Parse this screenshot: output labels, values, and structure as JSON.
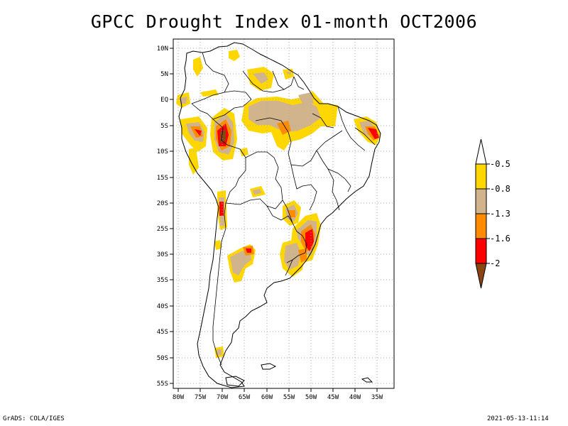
{
  "title": "GPCC Drought Index 01-month OCT2006",
  "footer": {
    "left": "GrADS: COLA/IGES",
    "right": "2021-05-13-11:14"
  },
  "map": {
    "region": "South America",
    "lon_range": [
      -81,
      -31
    ],
    "lat_range": [
      -56,
      12
    ],
    "lat_labels": [
      "10N",
      "5N",
      "EQ",
      "5S",
      "10S",
      "15S",
      "20S",
      "25S",
      "30S",
      "35S",
      "40S",
      "45S",
      "50S",
      "55S"
    ],
    "lon_labels": [
      "80W",
      "75W",
      "70W",
      "65W",
      "60W",
      "55W",
      "50W",
      "45W",
      "40W",
      "35W"
    ]
  },
  "legend": {
    "entries": [
      {
        "label": "-0.5",
        "color": "#ffd700"
      },
      {
        "label": "-0.8",
        "color": "#d2b48c"
      },
      {
        "label": "-1.3",
        "color": "#ff8c00"
      },
      {
        "label": "-1.6",
        "color": "#ff0000"
      },
      {
        "label": "-2",
        "color": "#8b4513"
      }
    ],
    "top_color": "#ffffff"
  },
  "colors": {
    "yellow": "#ffd700",
    "tan": "#d2b48c",
    "orange": "#ff8c00",
    "red": "#ff0000",
    "brown": "#8b4513"
  }
}
